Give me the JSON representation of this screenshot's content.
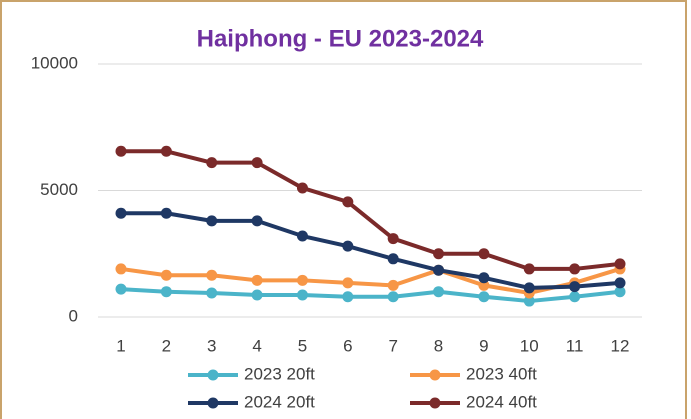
{
  "chart_data": {
    "type": "line",
    "title": "Haiphong - EU 2023-2024",
    "categories": [
      "1",
      "2",
      "3",
      "4",
      "5",
      "6",
      "7",
      "8",
      "9",
      "10",
      "11",
      "12"
    ],
    "series": [
      {
        "name": "2023 20ft",
        "color": "#4bb4c9",
        "values": [
          1100,
          1000,
          950,
          870,
          870,
          800,
          800,
          1000,
          800,
          630,
          800,
          1000
        ]
      },
      {
        "name": "2023 40ft",
        "color": "#f79646",
        "values": [
          1900,
          1650,
          1650,
          1450,
          1450,
          1350,
          1250,
          1850,
          1250,
          950,
          1350,
          1900
        ]
      },
      {
        "name": "2024 20ft",
        "color": "#1f3864",
        "values": [
          4100,
          4100,
          3800,
          3800,
          3200,
          2800,
          2300,
          1850,
          1550,
          1150,
          1200,
          1350
        ]
      },
      {
        "name": "2024 40ft",
        "color": "#7b2a2a",
        "values": [
          6550,
          6550,
          6100,
          6100,
          5100,
          4550,
          3100,
          2500,
          2500,
          1900,
          1900,
          2100
        ]
      }
    ],
    "ylim": [
      0,
      10000
    ],
    "yticks": [
      0,
      5000,
      10000
    ],
    "grid": true
  }
}
